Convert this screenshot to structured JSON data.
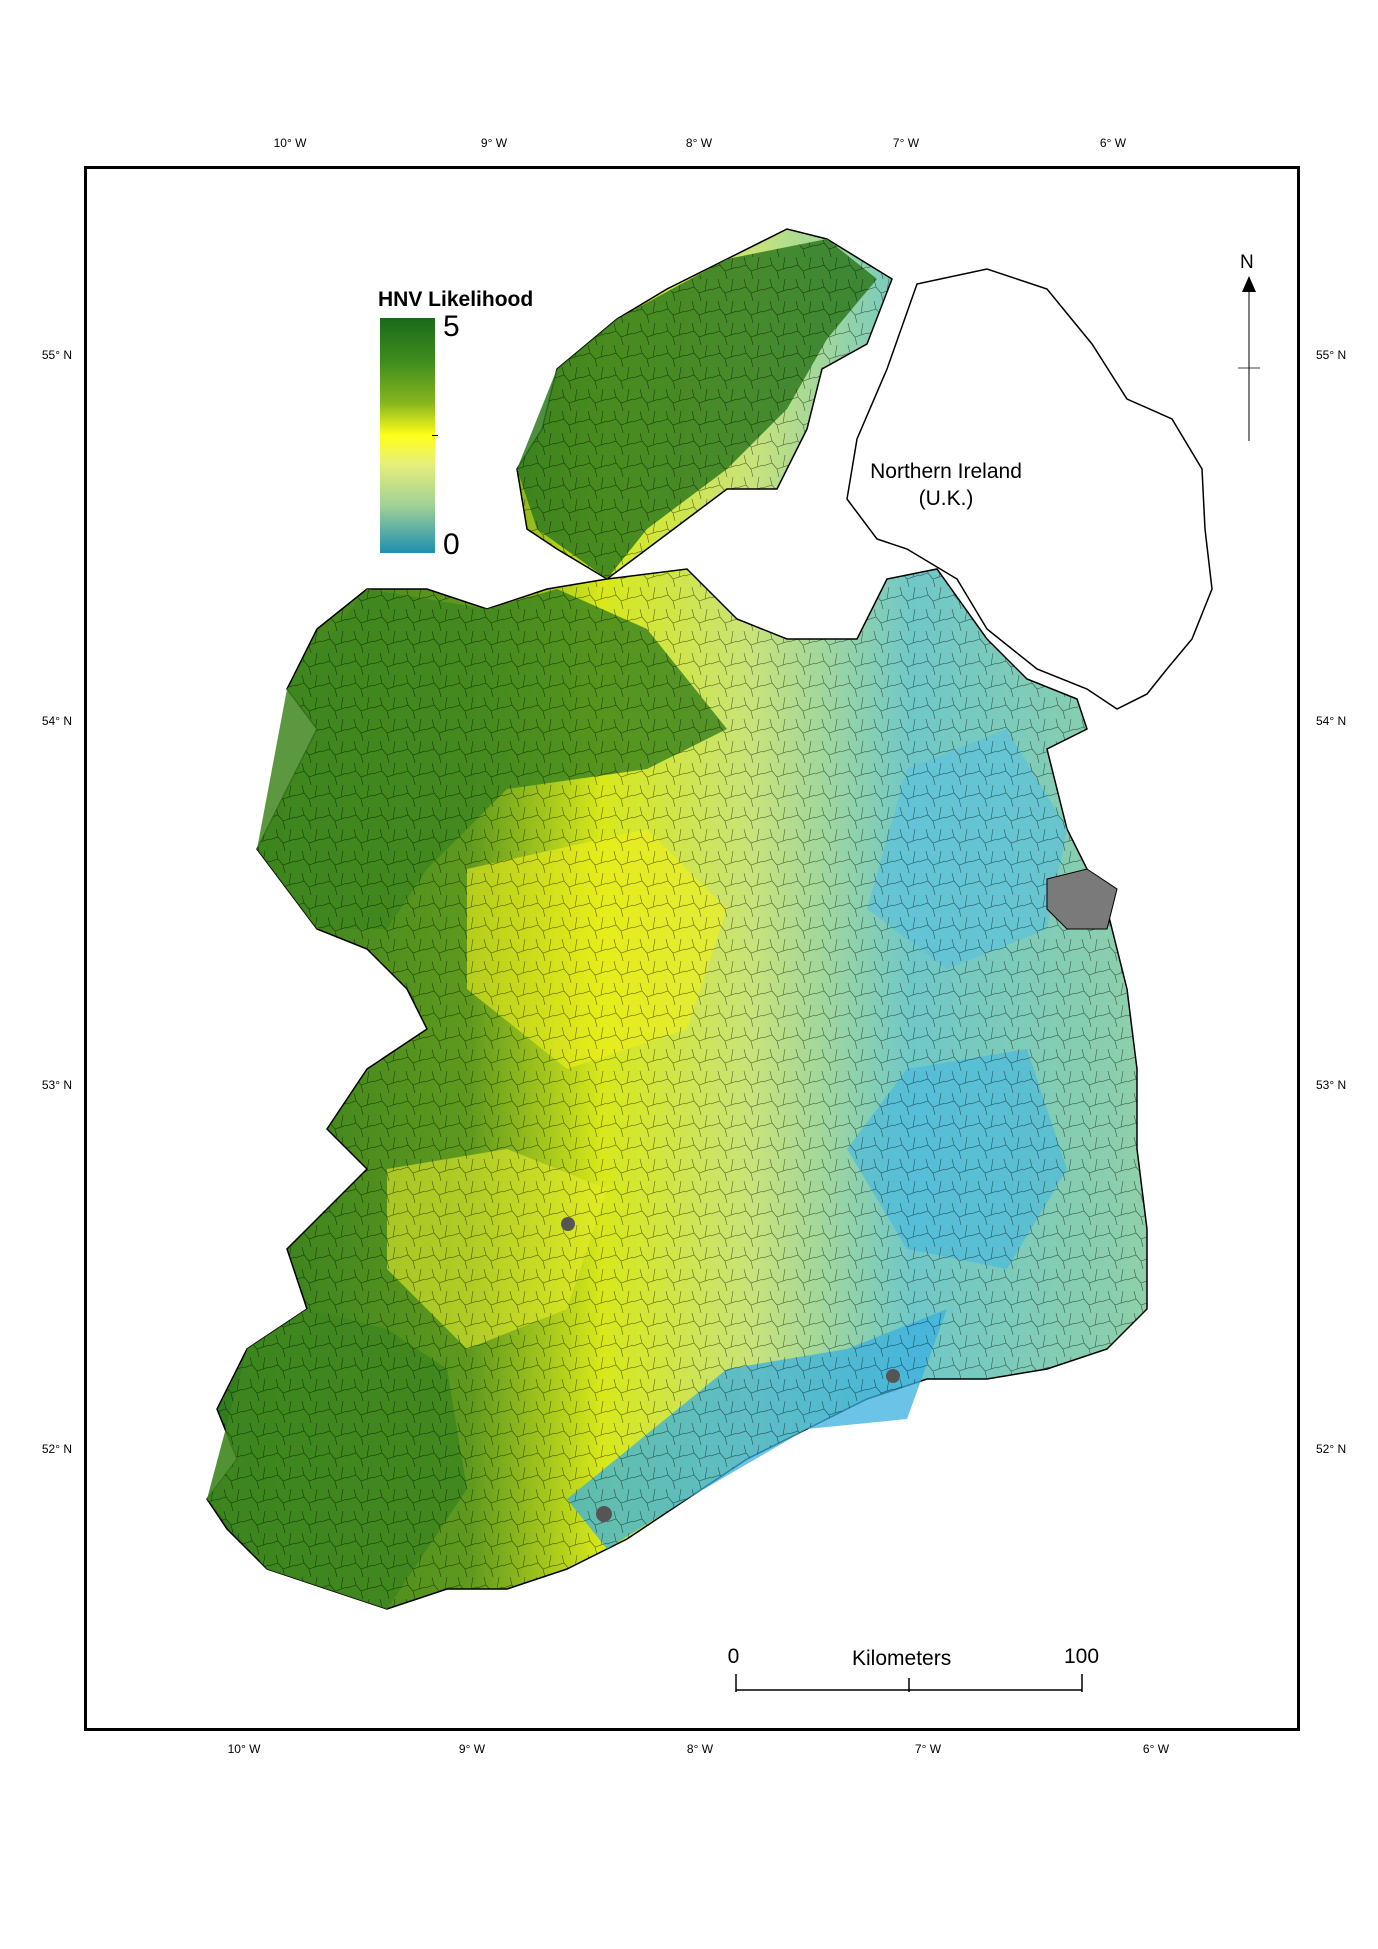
{
  "legend": {
    "title": "HNV Likelihood",
    "max_label": "5",
    "min_label": "0"
  },
  "colors": {
    "high": "#1a6a1a",
    "mid": "#ffff1a",
    "low": "#1e8fb0",
    "unpopulated": "#ffffff",
    "urban": "#7a7a7a"
  },
  "longitude_ticks_top": [
    "10° W",
    "9° W",
    "8° W",
    "7° W",
    "6° W"
  ],
  "longitude_ticks_bottom": [
    "10° W",
    "9° W",
    "8° W",
    "7° W",
    "6° W"
  ],
  "latitude_ticks_left": [
    "55° N",
    "54° N",
    "53° N",
    "52° N"
  ],
  "latitude_ticks_right": [
    "55° N",
    "54° N",
    "53° N",
    "52° N"
  ],
  "northern_ireland": {
    "line1": "Northern Ireland",
    "line2": "(U.K.)"
  },
  "north_arrow": {
    "label": "N"
  },
  "scale_bar": {
    "start": "0",
    "end": "100",
    "unit": "Kilometers"
  }
}
